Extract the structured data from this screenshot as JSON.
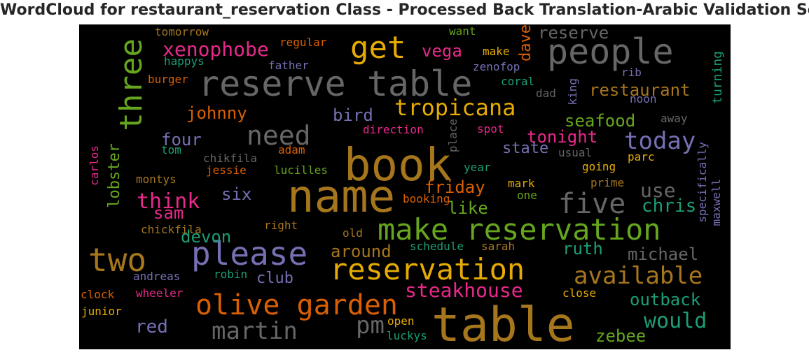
{
  "title": "WordCloud for restaurant_reservation Class - Processed Back Translation-Arabic Validation Set",
  "background_color": "#000000",
  "words": [
    {
      "text": "table",
      "color": "#a6761d",
      "vertical": false
    },
    {
      "text": "name",
      "color": "#a6761d",
      "vertical": false
    },
    {
      "text": "book",
      "color": "#a6761d",
      "vertical": false
    },
    {
      "text": "reserve table",
      "color": "#666666",
      "vertical": false
    },
    {
      "text": "make reservation",
      "color": "#66a61e",
      "vertical": false
    },
    {
      "text": "people",
      "color": "#666666",
      "vertical": false
    },
    {
      "text": "reservation",
      "color": "#e6ab02",
      "vertical": false
    },
    {
      "text": "olive garden",
      "color": "#d95f02",
      "vertical": false
    },
    {
      "text": "please",
      "color": "#7570b3",
      "vertical": false
    },
    {
      "text": "two",
      "color": "#a6761d",
      "vertical": false
    },
    {
      "text": "get",
      "color": "#e6ab02",
      "vertical": false
    },
    {
      "text": "three",
      "color": "#66a61e",
      "vertical": true
    },
    {
      "text": "five",
      "color": "#666666",
      "vertical": false
    },
    {
      "text": "need",
      "color": "#666666",
      "vertical": false
    },
    {
      "text": "tropicana",
      "color": "#e6ab02",
      "vertical": false
    },
    {
      "text": "today",
      "color": "#7570b3",
      "vertical": false
    },
    {
      "text": "available",
      "color": "#a6761d",
      "vertical": false
    },
    {
      "text": "martin",
      "color": "#666666",
      "vertical": false
    },
    {
      "text": "pm",
      "color": "#666666",
      "vertical": false
    },
    {
      "text": "would",
      "color": "#1b9e77",
      "vertical": false
    },
    {
      "text": "steakhouse",
      "color": "#e7298a",
      "vertical": false
    },
    {
      "text": "think",
      "color": "#e7298a",
      "vertical": false
    },
    {
      "text": "xenophobe",
      "color": "#e7298a",
      "vertical": false
    },
    {
      "text": "restaurant",
      "color": "#a6761d",
      "vertical": false
    },
    {
      "text": "friday",
      "color": "#d95f02",
      "vertical": false
    },
    {
      "text": "use",
      "color": "#666666",
      "vertical": false
    },
    {
      "text": "chris",
      "color": "#1b9e77",
      "vertical": false
    },
    {
      "text": "outback",
      "color": "#1b9e77",
      "vertical": false
    },
    {
      "text": "michael",
      "color": "#666666",
      "vertical": false
    },
    {
      "text": "red",
      "color": "#7570b3",
      "vertical": false
    },
    {
      "text": "johnny",
      "color": "#d95f02",
      "vertical": false
    },
    {
      "text": "seafood",
      "color": "#66a61e",
      "vertical": false
    },
    {
      "text": "tonight",
      "color": "#e7298a",
      "vertical": false
    },
    {
      "text": "reserve",
      "color": "#666666",
      "vertical": false
    },
    {
      "text": "bird",
      "color": "#7570b3",
      "vertical": false
    },
    {
      "text": "four",
      "color": "#7570b3",
      "vertical": false
    },
    {
      "text": "lobster",
      "color": "#66a61e",
      "vertical": true
    },
    {
      "text": "devon",
      "color": "#1b9e77",
      "vertical": false
    },
    {
      "text": "sam",
      "color": "#e7298a",
      "vertical": false
    },
    {
      "text": "six",
      "color": "#7570b3",
      "vertical": false
    },
    {
      "text": "like",
      "color": "#66a61e",
      "vertical": false
    },
    {
      "text": "around",
      "color": "#a6761d",
      "vertical": false
    },
    {
      "text": "club",
      "color": "#7570b3",
      "vertical": false
    },
    {
      "text": "ruth",
      "color": "#1b9e77",
      "vertical": false
    },
    {
      "text": "zebee",
      "color": "#66a61e",
      "vertical": false
    },
    {
      "text": "state",
      "color": "#7570b3",
      "vertical": false
    },
    {
      "text": "vega",
      "color": "#e7298a",
      "vertical": false
    },
    {
      "text": "dave",
      "color": "#d95f02",
      "vertical": true
    },
    {
      "text": "specifically",
      "color": "#7570b3",
      "vertical": true
    },
    {
      "text": "tomorrow",
      "color": "#a6761d",
      "vertical": false
    },
    {
      "text": "regular",
      "color": "#d95f02",
      "vertical": false
    },
    {
      "text": "happys",
      "color": "#1b9e77",
      "vertical": false
    },
    {
      "text": "father",
      "color": "#7570b3",
      "vertical": false
    },
    {
      "text": "burger",
      "color": "#d95f02",
      "vertical": false
    },
    {
      "text": "want",
      "color": "#66a61e",
      "vertical": false
    },
    {
      "text": "make",
      "color": "#e6ab02",
      "vertical": false
    },
    {
      "text": "zenofop",
      "color": "#7570b3",
      "vertical": false
    },
    {
      "text": "rib",
      "color": "#7570b3",
      "vertical": false
    },
    {
      "text": "coral",
      "color": "#1b9e77",
      "vertical": false
    },
    {
      "text": "dad",
      "color": "#666666",
      "vertical": false
    },
    {
      "text": "king",
      "color": "#7570b3",
      "vertical": true
    },
    {
      "text": "noon",
      "color": "#7570b3",
      "vertical": false
    },
    {
      "text": "turning",
      "color": "#1b9e77",
      "vertical": true
    },
    {
      "text": "away",
      "color": "#666666",
      "vertical": false
    },
    {
      "text": "direction",
      "color": "#e7298a",
      "vertical": false
    },
    {
      "text": "place",
      "color": "#666666",
      "vertical": true
    },
    {
      "text": "spot",
      "color": "#e7298a",
      "vertical": false
    },
    {
      "text": "usual",
      "color": "#666666",
      "vertical": false
    },
    {
      "text": "tom",
      "color": "#1b9e77",
      "vertical": false
    },
    {
      "text": "chikfila",
      "color": "#666666",
      "vertical": false
    },
    {
      "text": "adam",
      "color": "#d95f02",
      "vertical": false
    },
    {
      "text": "carlos",
      "color": "#e7298a",
      "vertical": true
    },
    {
      "text": "jessie",
      "color": "#d95f02",
      "vertical": false
    },
    {
      "text": "lucilles",
      "color": "#66a61e",
      "vertical": false
    },
    {
      "text": "year",
      "color": "#1b9e77",
      "vertical": false
    },
    {
      "text": "going",
      "color": "#e6ab02",
      "vertical": false
    },
    {
      "text": "parc",
      "color": "#e6ab02",
      "vertical": false
    },
    {
      "text": "maxwell",
      "color": "#7570b3",
      "vertical": true
    },
    {
      "text": "montys",
      "color": "#a6761d",
      "vertical": false
    },
    {
      "text": "mark",
      "color": "#e6ab02",
      "vertical": false
    },
    {
      "text": "prime",
      "color": "#a6761d",
      "vertical": false
    },
    {
      "text": "one",
      "color": "#66a61e",
      "vertical": false
    },
    {
      "text": "booking",
      "color": "#d95f02",
      "vertical": false
    },
    {
      "text": "chickfila",
      "color": "#a6761d",
      "vertical": false
    },
    {
      "text": "right",
      "color": "#a6761d",
      "vertical": false
    },
    {
      "text": "old",
      "color": "#a6761d",
      "vertical": false
    },
    {
      "text": "schedule",
      "color": "#1b9e77",
      "vertical": false
    },
    {
      "text": "sarah",
      "color": "#a6761d",
      "vertical": false
    },
    {
      "text": "andreas",
      "color": "#7570b3",
      "vertical": false
    },
    {
      "text": "robin",
      "color": "#1b9e77",
      "vertical": false
    },
    {
      "text": "clock",
      "color": "#d95f02",
      "vertical": false
    },
    {
      "text": "wheeler",
      "color": "#e7298a",
      "vertical": false
    },
    {
      "text": "close",
      "color": "#e6ab02",
      "vertical": false
    },
    {
      "text": "junior",
      "color": "#e6ab02",
      "vertical": false
    },
    {
      "text": "open",
      "color": "#e6ab02",
      "vertical": false
    },
    {
      "text": "luckys",
      "color": "#1b9e77",
      "vertical": false
    }
  ]
}
